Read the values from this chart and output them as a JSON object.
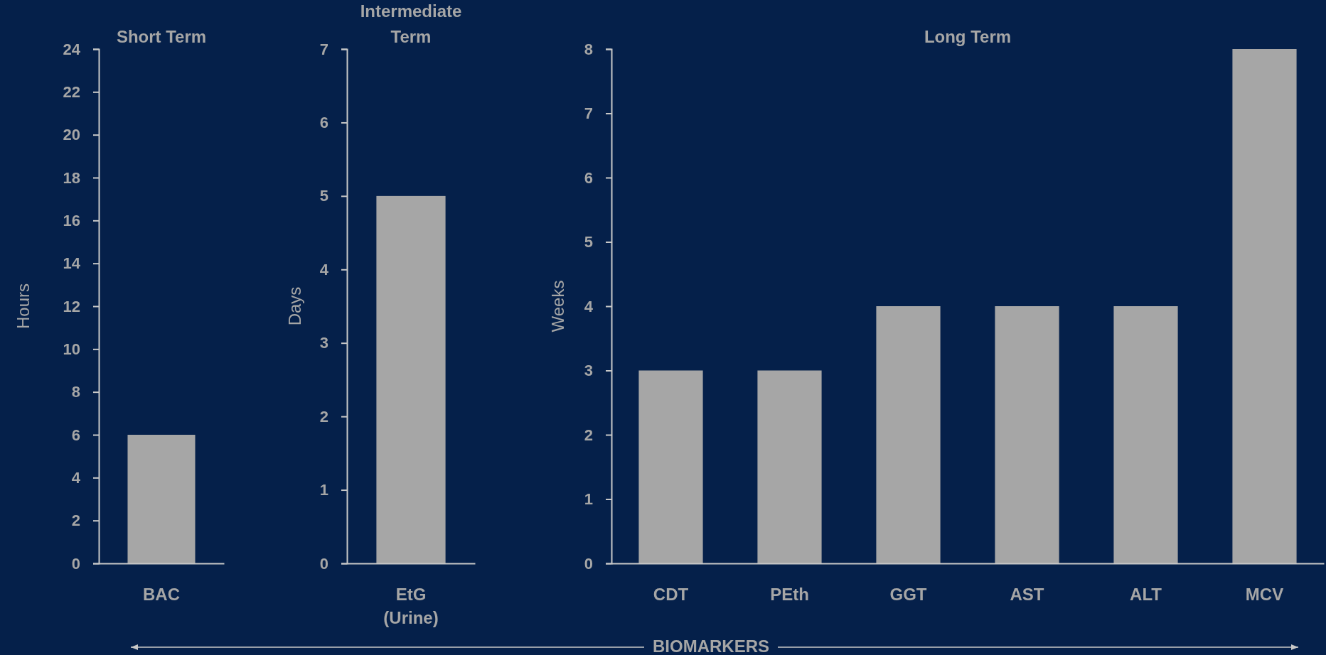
{
  "chart_data": [
    {
      "type": "bar",
      "title": "Short Term",
      "ylabel": "Hours",
      "categories": [
        "BAC"
      ],
      "values": [
        6
      ],
      "color": "#a6a6a6",
      "ylim": [
        0,
        24
      ],
      "yticks": [
        0,
        2,
        4,
        6,
        8,
        10,
        12,
        14,
        16,
        18,
        20,
        22,
        24
      ],
      "annotations": [
        "BIOMARKERS"
      ]
    },
    {
      "type": "bar",
      "title": "Intermediate Term",
      "ylabel": "Days",
      "categories": [
        "EtG\n(Urine)"
      ],
      "values": [
        5
      ],
      "color": "#a6a6a6",
      "ylim": [
        0,
        7
      ],
      "yticks": [
        0,
        1,
        2,
        3,
        4,
        5,
        6,
        7
      ]
    },
    {
      "type": "bar",
      "title": "Long Term",
      "ylabel": "Weeks",
      "categories": [
        "CDT",
        "PEth",
        "GGT",
        "AST",
        "ALT",
        "MCV"
      ],
      "values": [
        3,
        3,
        4,
        4,
        4,
        8
      ],
      "color": "#a6a6a6",
      "ylim": [
        0,
        8
      ],
      "yticks": [
        0,
        1,
        2,
        3,
        4,
        5,
        6,
        7,
        8
      ]
    }
  ]
}
